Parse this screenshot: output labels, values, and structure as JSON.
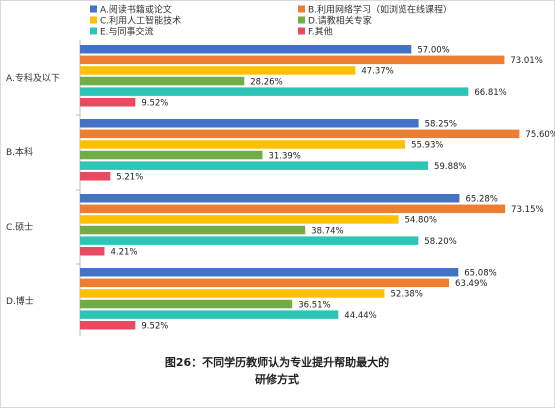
{
  "chart_data": {
    "type": "bar",
    "orientation": "horizontal",
    "categories": [
      "A.专科及以下",
      "B.本科",
      "C.硕士",
      "D.博士"
    ],
    "series": [
      {
        "name": "A.阅读书籍或论文",
        "color": "#4472C4",
        "values": [
          57.0,
          58.25,
          65.28,
          65.08
        ]
      },
      {
        "name": "B.利用网络学习（如浏览在线课程）",
        "color": "#ED7D31",
        "values": [
          73.01,
          75.6,
          73.15,
          63.49
        ]
      },
      {
        "name": "C.利用人工智能技术",
        "color": "#FFC000",
        "values": [
          47.37,
          55.93,
          54.8,
          52.38
        ]
      },
      {
        "name": "D.请教相关专家",
        "color": "#70AD47",
        "values": [
          28.26,
          31.39,
          38.74,
          36.51
        ]
      },
      {
        "name": "E.与同事交流",
        "color": "#2EC4B6",
        "values": [
          66.81,
          59.88,
          58.2,
          44.44
        ]
      },
      {
        "name": "F.其他",
        "color": "#E84A5F",
        "values": [
          9.52,
          5.21,
          4.21,
          9.52
        ]
      }
    ],
    "value_labels": [
      [
        "57.00%",
        "58.25%",
        "65.28%",
        "65.08%"
      ],
      [
        "73.01%",
        "75.60%",
        "73.15%",
        "63.49%"
      ],
      [
        "47.37%",
        "55.93%",
        "54.80%",
        "52.38%"
      ],
      [
        "28.26%",
        "31.39%",
        "38.74%",
        "36.51%"
      ],
      [
        "66.81%",
        "59.88%",
        "58.20%",
        "44.44%"
      ],
      [
        "9.52%",
        "5.21%",
        "4.21%",
        "9.52%"
      ]
    ],
    "xlim": [
      0,
      80
    ],
    "grid": false,
    "legend_position": "top",
    "caption_lines": [
      "图26：不同学历教师认为专业提升帮助最大的",
      "研修方式"
    ]
  }
}
